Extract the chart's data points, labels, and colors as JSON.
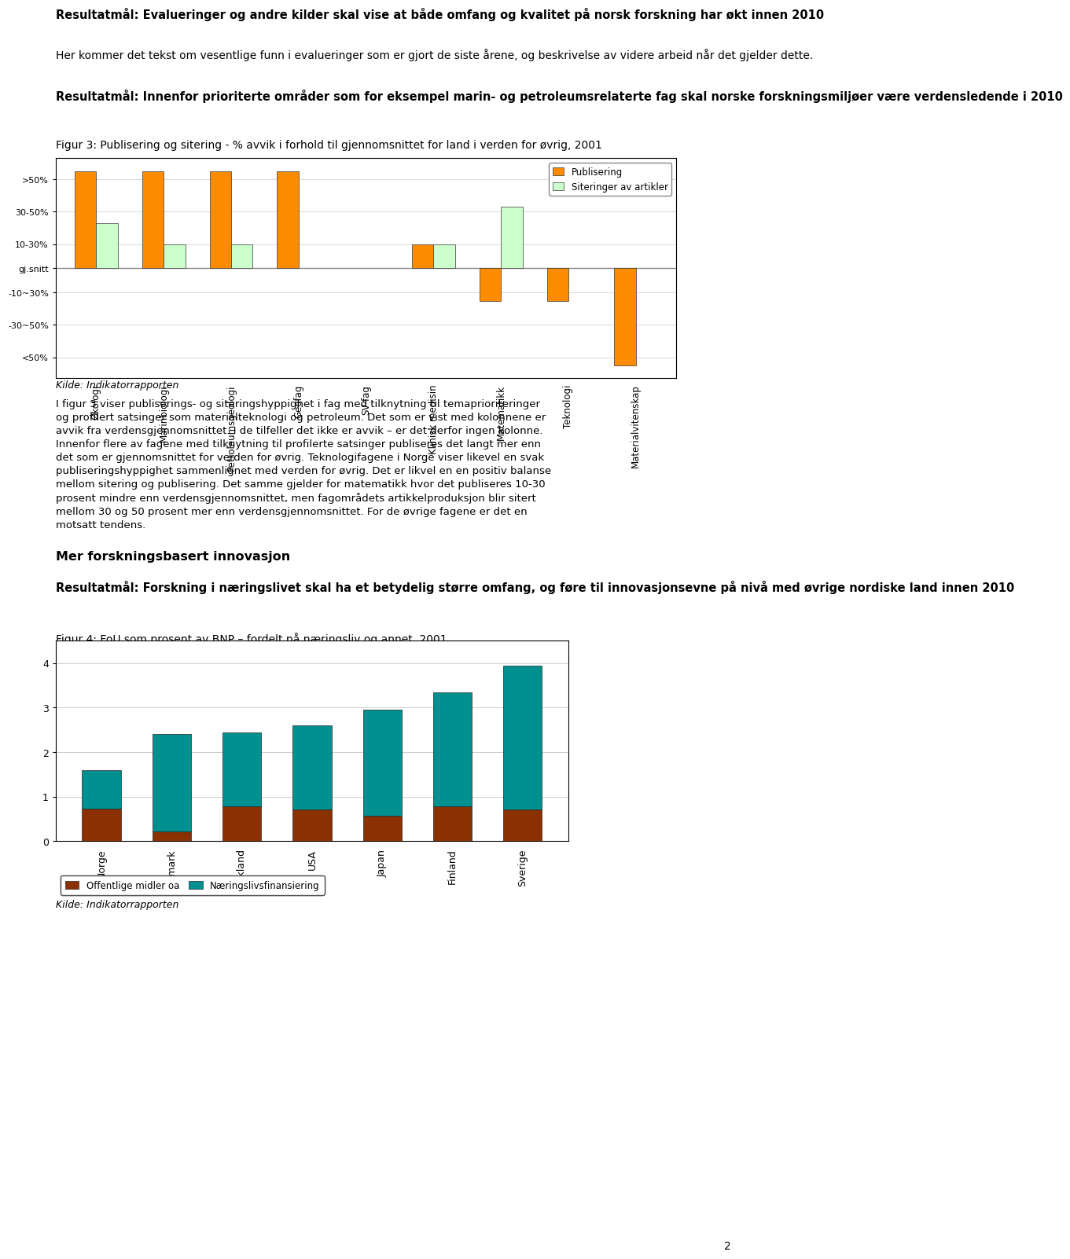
{
  "page_bg": "#ffffff",
  "top_bold_text": "Resultatmål: Evalueringer og andre kilder skal vise at både omfang og kvalitet på norsk forskning har økt innen 2010",
  "top_regular_text": "Her kommer det tekst om vesentlige funn i evalueringer som er gjort de siste årene, og beskrivelse av videre arbeid når det gjelder dette.",
  "section2_bold": "Resultatmål: Innenfor prioriterte områder som for eksempel marin- og petroleumsrelaterte fag skal norske forskningsmiljøer være verdensledende i 2010",
  "section2_caption": "Figur 3: Publisering og sitering - % avvik i forhold til gjennomsnittet for land i verden for øvrig, 2001",
  "chart1_categories": [
    "Økologi",
    "Marinbiologi",
    "Petroleumsgeologi",
    "Geofag",
    "SV-fag",
    "Klinisk medisin",
    "Matematikk",
    "Teknologi",
    "Materialvitenskap"
  ],
  "chart1_publisering": [
    60,
    60,
    60,
    60,
    null,
    15,
    -20,
    -20,
    -60
  ],
  "chart1_sitering": [
    28,
    15,
    15,
    null,
    null,
    15,
    38,
    null,
    null
  ],
  "chart1_pub_color": "#FF8C00",
  "chart1_sit_color": "#CCFFCC",
  "chart1_ytick_labels": [
    ">50%",
    "30-50%",
    "10-30%",
    "gj.snitt",
    "-10~30%",
    "-30~50%",
    "<50%"
  ],
  "chart1_ytick_vals": [
    55,
    35,
    15,
    0,
    -15,
    -35,
    -55
  ],
  "chart1_ylim": [
    -68,
    68
  ],
  "chart1_legend_pub": "Publisering",
  "chart1_legend_sit": "Siteringer av artikler",
  "kilde1": "Kilde: Indikatorrapporten",
  "body_text1_lines": [
    "I figur 3 viser publiserings- og siteringshyppighet i fag med tilknytning til temaprioriteringer",
    "og profilert satsinger som materialteknologi og petroleum. Det som er vist med kolonnene er",
    "avvik fra verdensgjennomsnittet. I de tilfeller det ikke er avvik – er det derfor ingen kolonne.",
    "Innenfor flere av fagene med tilknytning til profilerte satsinger publiseres det langt mer enn",
    "det som er gjennomsnittet for verden for øvrig. Teknologifagene i Norge viser likevel en svak",
    "publiseringshyppighet sammenlignet med verden for øvrig. Det er likvel en en positiv balanse",
    "mellom sitering og publisering. Det samme gjelder for matematikk hvor det publiseres 10-30",
    "prosent mindre enn verdensgjennomsnittet, men fagområdets artikkelproduksjon blir sitert",
    "mellom 30 og 50 prosent mer enn verdensgjennomsnittet. For de øvrige fagene er det en",
    "motsatt tendens."
  ],
  "section3_bold": "Mer forskningsbasert innovasjon",
  "section4_bold": "Resultatmål: Forskning i næringslivet skal ha et betydelig større omfang, og føre til innovasjonsevne på nivå med øvrige nordiske land innen 2010",
  "section4_caption": "Figur 4: FoU som prosent av BNP – fordelt på næringsliv og annet, 2001",
  "chart2_categories": [
    "Norge",
    "Danmark",
    "Tyskland",
    "USA",
    "Japan",
    "Finland",
    "Sverige"
  ],
  "chart2_offentlig": [
    0.73,
    0.22,
    0.78,
    0.72,
    0.58,
    0.78,
    0.72
  ],
  "chart2_naeringslivsf": [
    0.87,
    2.18,
    1.67,
    1.88,
    2.37,
    2.57,
    3.23
  ],
  "chart2_pub_color": "#8B3000",
  "chart2_sit_color": "#009090",
  "chart2_legend_off": "Offentlige midler oa",
  "chart2_legend_nar": "Næringslivsfinansiering",
  "chart2_ylim": [
    0,
    4.5
  ],
  "chart2_yticks": [
    0,
    1,
    2,
    3,
    4
  ],
  "kilde2": "Kilde: Indikatorrapporten",
  "page_number": "2"
}
